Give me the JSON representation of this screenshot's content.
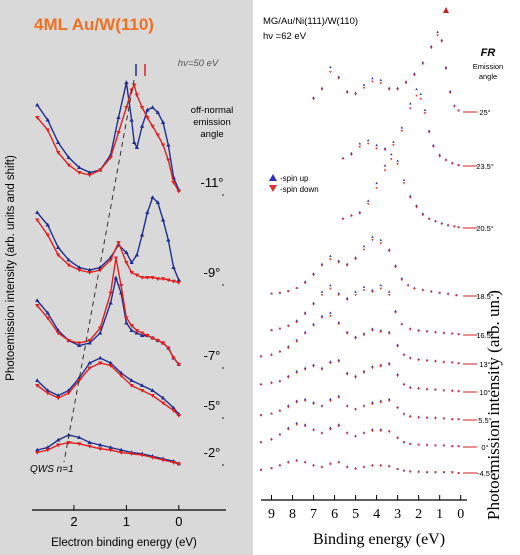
{
  "chart_data": [
    {
      "type": "line",
      "title": "4ML Au/W(110)",
      "photon_energy": "hν=50 eV",
      "xlabel": "Electron binding energy (eV)",
      "ylabel": "Photoemission intensity (arb. units and shift)",
      "xlim": [
        2.8,
        -0.9
      ],
      "xticks": [
        "2",
        "1",
        "0"
      ],
      "angle_header": [
        "off-normal",
        "emission",
        "angle"
      ],
      "annotation": "QWS n=1",
      "colors": {
        "spin_up": "#1f2f8f",
        "spin_down": "#e02020",
        "title": "#f07020"
      },
      "curves": [
        {
          "angle": "-11°",
          "x": [
            2.7,
            2.5,
            2.3,
            2.1,
            1.9,
            1.7,
            1.5,
            1.3,
            1.15,
            1.0,
            0.9,
            0.85,
            0.8,
            0.7,
            0.6,
            0.5,
            0.4,
            0.3,
            0.2,
            0.1,
            0.0
          ],
          "up": [
            72,
            60,
            42,
            30,
            22,
            18,
            20,
            32,
            62,
            90,
            60,
            42,
            38,
            55,
            68,
            70,
            66,
            58,
            40,
            14,
            4
          ],
          "down": [
            62,
            52,
            34,
            24,
            18,
            16,
            20,
            30,
            50,
            70,
            84,
            88,
            80,
            70,
            62,
            55,
            48,
            40,
            28,
            10,
            3
          ]
        },
        {
          "angle": "-9°",
          "x": [
            2.7,
            2.5,
            2.3,
            2.1,
            1.9,
            1.7,
            1.5,
            1.3,
            1.15,
            1.0,
            0.9,
            0.8,
            0.7,
            0.6,
            0.5,
            0.4,
            0.3,
            0.2,
            0.1,
            0.0
          ],
          "up": [
            58,
            48,
            30,
            20,
            14,
            12,
            14,
            22,
            32,
            26,
            18,
            24,
            40,
            58,
            70,
            66,
            52,
            36,
            14,
            4
          ],
          "down": [
            52,
            40,
            24,
            16,
            12,
            10,
            12,
            20,
            34,
            18,
            10,
            8,
            6,
            6,
            6,
            5,
            5,
            4,
            3,
            2
          ]
        },
        {
          "angle": "-7°",
          "x": [
            2.7,
            2.5,
            2.3,
            2.1,
            1.9,
            1.7,
            1.5,
            1.3,
            1.2,
            1.1,
            1.0,
            0.9,
            0.8,
            0.7,
            0.6,
            0.5,
            0.4,
            0.3,
            0.2,
            0.1,
            0.0
          ],
          "up": [
            54,
            44,
            30,
            22,
            18,
            20,
            28,
            52,
            72,
            60,
            36,
            30,
            28,
            26,
            26,
            24,
            22,
            20,
            16,
            8,
            3
          ],
          "down": [
            50,
            40,
            28,
            22,
            20,
            22,
            32,
            60,
            88,
            66,
            40,
            34,
            30,
            28,
            26,
            24,
            22,
            20,
            16,
            8,
            3
          ]
        },
        {
          "angle": "-5°",
          "x": [
            2.7,
            2.5,
            2.3,
            2.1,
            1.9,
            1.7,
            1.5,
            1.3,
            1.1,
            0.9,
            0.7,
            0.5,
            0.3,
            0.1,
            0.0
          ],
          "up": [
            30,
            22,
            18,
            22,
            32,
            44,
            48,
            44,
            36,
            30,
            26,
            22,
            16,
            8,
            3
          ],
          "down": [
            26,
            20,
            16,
            20,
            30,
            40,
            44,
            42,
            34,
            26,
            22,
            18,
            12,
            6,
            2
          ]
        },
        {
          "angle": "-2°",
          "x": [
            2.7,
            2.5,
            2.3,
            2.1,
            1.9,
            1.7,
            1.5,
            1.3,
            1.1,
            0.9,
            0.7,
            0.5,
            0.3,
            0.1,
            0.0
          ],
          "up": [
            12,
            14,
            20,
            24,
            22,
            18,
            16,
            14,
            12,
            10,
            9,
            7,
            5,
            3,
            1
          ],
          "down": [
            10,
            12,
            16,
            18,
            17,
            15,
            13,
            12,
            10,
            9,
            8,
            6,
            4,
            2,
            1
          ]
        }
      ]
    },
    {
      "type": "line",
      "title": "MG/Au/Ni(111)/W(110)",
      "photon_energy": "hν =62 eV",
      "xlabel": "Binding energy (eV)",
      "ylabel": "Photoemission intensity (arb. un.)",
      "xlim": [
        9.5,
        -0.3
      ],
      "xticks": [
        "9",
        "8",
        "7",
        "6",
        "5",
        "4",
        "3",
        "2",
        "1",
        "0"
      ],
      "angle_header": [
        "FR",
        "Emission",
        "angle"
      ],
      "legend": [
        "-spin up",
        "-spin down"
      ],
      "legend_position": "left",
      "colors": {
        "spin_up": "#3030c0",
        "spin_down": "#e03030"
      },
      "curves": [
        {
          "angle": "25°",
          "x": [
            7.0,
            6.6,
            6.2,
            5.8,
            5.4,
            5.0,
            4.6,
            4.2,
            3.8,
            3.4,
            3.0,
            2.6,
            2.2,
            1.8,
            1.4,
            1.1,
            0.9,
            0.7,
            0.5,
            0.3,
            0.1
          ],
          "up": [
            18,
            30,
            56,
            44,
            26,
            24,
            34,
            42,
            40,
            30,
            30,
            38,
            48,
            62,
            82,
            100,
            90,
            56,
            26,
            8,
            2
          ],
          "down": [
            16,
            28,
            50,
            42,
            24,
            22,
            30,
            38,
            36,
            28,
            28,
            36,
            46,
            60,
            80,
            96,
            88,
            54,
            24,
            7,
            2
          ]
        },
        {
          "angle": "23.5°",
          "x": [
            5.6,
            5.2,
            4.8,
            4.4,
            4.0,
            3.6,
            3.2,
            2.8,
            2.4,
            2.1,
            1.9,
            1.7,
            1.5,
            1.3,
            1.0,
            0.7,
            0.4,
            0.1
          ],
          "up": [
            10,
            16,
            28,
            32,
            26,
            22,
            30,
            48,
            78,
            96,
            90,
            70,
            44,
            26,
            14,
            8,
            4,
            1
          ],
          "down": [
            9,
            14,
            24,
            28,
            22,
            20,
            26,
            44,
            72,
            88,
            84,
            66,
            42,
            24,
            12,
            7,
            3,
            1
          ]
        },
        {
          "angle": "20.5°",
          "x": [
            5.6,
            5.2,
            4.8,
            4.4,
            4.0,
            3.6,
            3.3,
            3.0,
            2.7,
            2.4,
            2.1,
            1.8,
            1.5,
            1.2,
            0.9,
            0.6,
            0.3,
            0.1
          ],
          "up": [
            12,
            16,
            20,
            34,
            56,
            78,
            92,
            84,
            60,
            40,
            28,
            18,
            12,
            9,
            6,
            4,
            2,
            1
          ],
          "down": [
            11,
            15,
            18,
            30,
            50,
            72,
            86,
            80,
            56,
            38,
            26,
            16,
            11,
            8,
            5,
            3,
            2,
            1
          ]
        },
        {
          "angle": "18.5°",
          "x": [
            9.0,
            8.6,
            8.2,
            7.8,
            7.4,
            7.0,
            6.6,
            6.2,
            5.8,
            5.4,
            5.0,
            4.6,
            4.2,
            3.8,
            3.4,
            3.1,
            2.8,
            2.5,
            2.2,
            1.8,
            1.4,
            1.0,
            0.6,
            0.2
          ],
          "up": [
            3,
            4,
            6,
            10,
            18,
            28,
            40,
            50,
            44,
            40,
            48,
            62,
            74,
            70,
            58,
            38,
            22,
            14,
            10,
            8,
            6,
            4,
            3,
            1
          ],
          "down": [
            3,
            4,
            6,
            10,
            16,
            26,
            38,
            46,
            42,
            38,
            46,
            58,
            70,
            66,
            56,
            36,
            20,
            13,
            9,
            7,
            5,
            4,
            2,
            1
          ]
        },
        {
          "angle": "16.5°",
          "x": [
            9.0,
            8.6,
            8.2,
            7.8,
            7.4,
            7.0,
            6.6,
            6.2,
            5.8,
            5.4,
            5.0,
            4.6,
            4.2,
            3.8,
            3.4,
            3.1,
            2.8,
            2.4,
            2.0,
            1.6,
            1.2,
            0.8,
            0.4,
            0.1
          ],
          "up": [
            6,
            8,
            12,
            18,
            28,
            40,
            54,
            62,
            52,
            46,
            54,
            60,
            56,
            62,
            54,
            30,
            14,
            8,
            6,
            5,
            4,
            3,
            2,
            1
          ],
          "down": [
            6,
            8,
            11,
            16,
            26,
            38,
            50,
            58,
            50,
            44,
            50,
            56,
            54,
            58,
            50,
            28,
            13,
            7,
            5,
            4,
            3,
            2,
            2,
            1
          ]
        },
        {
          "angle": "13°",
          "x": [
            9.5,
            9.0,
            8.6,
            8.2,
            7.8,
            7.4,
            7.0,
            6.6,
            6.2,
            5.8,
            5.4,
            5.0,
            4.6,
            4.2,
            3.8,
            3.4,
            3.0,
            2.7,
            2.4,
            2.0,
            1.6,
            1.2,
            0.8,
            0.4,
            0.1
          ],
          "up": [
            10,
            12,
            16,
            22,
            30,
            40,
            50,
            60,
            64,
            52,
            40,
            34,
            38,
            44,
            42,
            40,
            24,
            12,
            8,
            6,
            5,
            4,
            3,
            2,
            1
          ],
          "down": [
            9,
            11,
            15,
            20,
            28,
            38,
            48,
            58,
            60,
            50,
            38,
            32,
            36,
            42,
            40,
            38,
            22,
            11,
            7,
            5,
            4,
            3,
            2,
            2,
            1
          ]
        },
        {
          "angle": "10°",
          "x": [
            9.5,
            9.0,
            8.6,
            8.2,
            7.8,
            7.4,
            7.0,
            6.6,
            6.2,
            5.8,
            5.4,
            5.0,
            4.6,
            4.2,
            3.8,
            3.4,
            3.0,
            2.7,
            2.4,
            2.0,
            1.6,
            1.2,
            0.8,
            0.4,
            0.1
          ],
          "up": [
            10,
            12,
            14,
            20,
            26,
            30,
            34,
            30,
            38,
            40,
            24,
            20,
            26,
            32,
            34,
            36,
            22,
            10,
            6,
            5,
            4,
            3,
            2,
            2,
            1
          ],
          "down": [
            9,
            11,
            13,
            18,
            24,
            28,
            32,
            28,
            36,
            38,
            22,
            18,
            24,
            30,
            32,
            34,
            20,
            9,
            5,
            4,
            3,
            3,
            2,
            1,
            1
          ]
        },
        {
          "angle": "5.5°",
          "x": [
            9.5,
            9.0,
            8.6,
            8.2,
            7.8,
            7.4,
            7.0,
            6.6,
            6.2,
            5.8,
            5.4,
            5.0,
            4.6,
            4.2,
            3.8,
            3.4,
            3.0,
            2.7,
            2.4,
            2.0,
            1.6,
            1.2,
            0.8,
            0.4,
            0.1
          ],
          "up": [
            6,
            8,
            12,
            18,
            24,
            26,
            22,
            18,
            26,
            30,
            18,
            14,
            18,
            22,
            24,
            26,
            16,
            8,
            5,
            4,
            3,
            3,
            2,
            1,
            1
          ],
          "down": [
            6,
            8,
            11,
            16,
            22,
            24,
            20,
            17,
            24,
            28,
            17,
            13,
            17,
            20,
            22,
            24,
            15,
            7,
            4,
            3,
            3,
            2,
            2,
            1,
            1
          ]
        },
        {
          "angle": "0°",
          "x": [
            9.5,
            9.0,
            8.6,
            8.2,
            7.8,
            7.4,
            7.0,
            6.6,
            6.2,
            5.8,
            5.4,
            5.0,
            4.6,
            4.2,
            3.8,
            3.4,
            3.0,
            2.7,
            2.4,
            2.0,
            1.6,
            1.2,
            0.8,
            0.4,
            0.1
          ],
          "up": [
            6,
            10,
            16,
            24,
            30,
            28,
            22,
            18,
            24,
            28,
            18,
            14,
            18,
            22,
            22,
            20,
            12,
            6,
            4,
            3,
            3,
            2,
            2,
            1,
            1
          ],
          "down": [
            6,
            9,
            15,
            22,
            28,
            26,
            21,
            17,
            22,
            26,
            17,
            13,
            17,
            20,
            20,
            19,
            11,
            6,
            4,
            3,
            2,
            2,
            2,
            1,
            1
          ]
        },
        {
          "angle": "-4.5°",
          "x": [
            9.5,
            9.0,
            8.6,
            8.2,
            7.8,
            7.4,
            7.0,
            6.6,
            6.2,
            5.8,
            5.4,
            5.0,
            4.6,
            4.2,
            3.8,
            3.4,
            3.0,
            2.7,
            2.4,
            2.0,
            1.6,
            1.2,
            0.8,
            0.4,
            0.1
          ],
          "up": [
            4,
            6,
            10,
            14,
            16,
            14,
            10,
            8,
            12,
            14,
            8,
            6,
            8,
            10,
            10,
            9,
            5,
            3,
            2,
            2,
            1,
            1,
            1,
            1,
            0
          ],
          "down": [
            4,
            6,
            9,
            13,
            15,
            13,
            9,
            7,
            11,
            13,
            7,
            5,
            7,
            9,
            9,
            8,
            5,
            3,
            2,
            1,
            1,
            1,
            1,
            1,
            0
          ]
        }
      ]
    }
  ]
}
